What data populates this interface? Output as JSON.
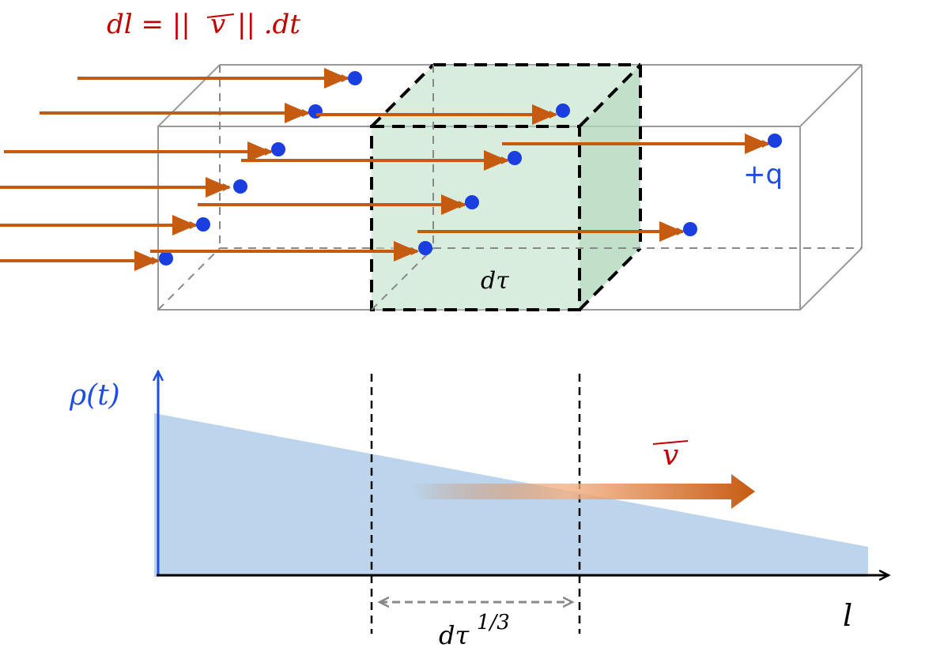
{
  "formula": {
    "prefix": "dl = ||",
    "vector": "v",
    "suffix": "|| .dt"
  },
  "charge_label": "+q",
  "volume_label": "dτ",
  "density_axis_label": "ρ(t)",
  "velocity_label": "v",
  "length_axis_label": "l",
  "width_label": {
    "base": "dτ",
    "exponent": "1/3"
  }
}
